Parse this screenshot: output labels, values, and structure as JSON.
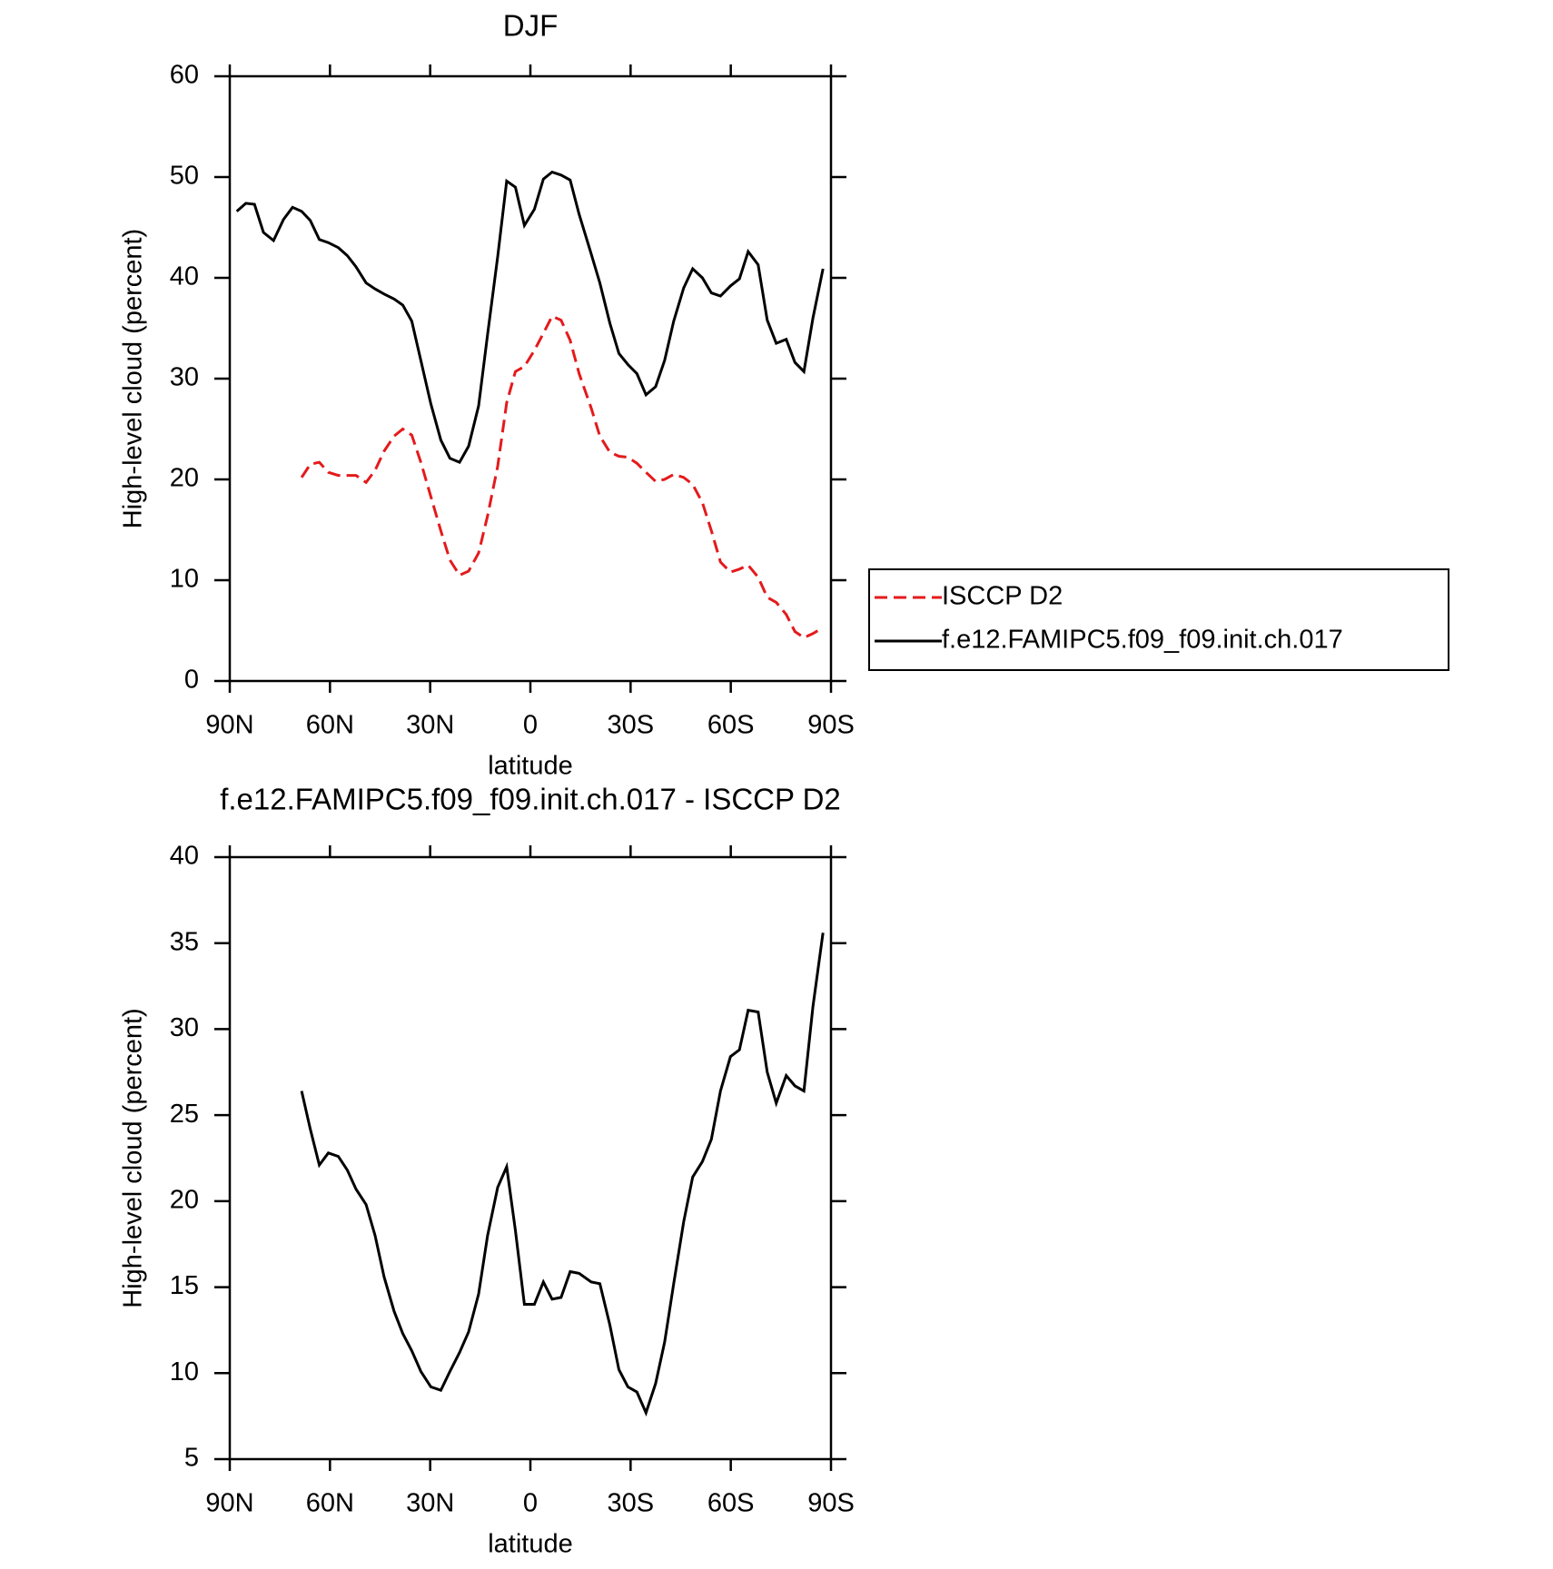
{
  "chart_data": [
    {
      "type": "line",
      "title": "DJF",
      "xlabel": "latitude",
      "ylabel": "High-level cloud (percent)",
      "x": [
        87.9,
        85.2,
        82.6,
        79.9,
        76.9,
        73.9,
        71.2,
        68.5,
        65.9,
        63.2,
        60.5,
        57.5,
        54.8,
        52.2,
        49.2,
        46.5,
        43.8,
        40.8,
        38.2,
        35.5,
        32.8,
        29.8,
        26.8,
        24.1,
        21.2,
        18.5,
        15.5,
        12.8,
        9.8,
        7.1,
        4.5,
        1.8,
        -1.2,
        -3.9,
        -6.5,
        -9.2,
        -11.9,
        -14.6,
        -18.2,
        -20.8,
        -23.8,
        -26.5,
        -29.2,
        -31.9,
        -34.6,
        -37.5,
        -40.2,
        -42.9,
        -45.9,
        -48.6,
        -51.5,
        -54.2,
        -56.9,
        -59.9,
        -62.6,
        -65.2,
        -68.2,
        -70.9,
        -73.6,
        -76.6,
        -79.2,
        -81.9,
        -84.6,
        -87.6
      ],
      "series": [
        {
          "name": "ISCCP D2",
          "color": "#e41a1c",
          "dash": true,
          "values": [
            null,
            null,
            null,
            null,
            null,
            null,
            null,
            20.2,
            21.5,
            21.7,
            20.7,
            20.4,
            20.4,
            20.4,
            19.7,
            20.9,
            22.8,
            24.3,
            25.0,
            24.4,
            21.7,
            18.3,
            14.9,
            12.0,
            10.5,
            10.9,
            12.7,
            16.4,
            21.3,
            27.6,
            30.7,
            31.2,
            32.8,
            34.5,
            36.2,
            35.8,
            33.8,
            30.5,
            27.1,
            24.3,
            22.7,
            22.3,
            22.2,
            21.6,
            20.7,
            19.8,
            20.0,
            20.5,
            20.2,
            19.5,
            17.7,
            14.9,
            11.8,
            10.8,
            11.1,
            11.5,
            10.3,
            8.3,
            7.8,
            6.6,
            4.9,
            4.3,
            4.7,
            5.3
          ]
        },
        {
          "name": "f.e12.FAMIPC5.f09_f09.init.ch.017",
          "color": "#000000",
          "dash": false,
          "values": [
            46.6,
            47.4,
            47.3,
            44.5,
            43.7,
            45.8,
            47.0,
            46.6,
            45.7,
            43.8,
            43.5,
            43.0,
            42.2,
            41.1,
            39.5,
            38.9,
            38.4,
            37.9,
            37.3,
            35.7,
            31.8,
            27.5,
            23.9,
            22.1,
            21.7,
            23.3,
            27.3,
            34.4,
            42.1,
            49.6,
            49.0,
            45.2,
            46.8,
            49.8,
            50.5,
            50.2,
            49.7,
            46.3,
            42.4,
            39.5,
            35.5,
            32.5,
            31.4,
            30.5,
            28.4,
            29.2,
            31.8,
            35.7,
            39.0,
            40.9,
            40.0,
            38.5,
            38.2,
            39.2,
            39.9,
            42.6,
            41.3,
            35.8,
            33.5,
            33.9,
            31.6,
            30.7,
            36.0,
            40.9
          ]
        }
      ],
      "xlim": [
        90,
        -90
      ],
      "xticks": [
        {
          "value": 90,
          "label": "90N"
        },
        {
          "value": 60,
          "label": "60N"
        },
        {
          "value": 30,
          "label": "30N"
        },
        0,
        {
          "value": -30,
          "label": "30S"
        },
        {
          "value": -60,
          "label": "60S"
        },
        {
          "value": -90,
          "label": "90S"
        }
      ],
      "ylim": [
        0,
        60
      ],
      "yticks": [
        0,
        10,
        20,
        30,
        40,
        50,
        60
      ],
      "legend": true
    },
    {
      "type": "line",
      "title": "f.e12.FAMIPC5.f09_f09.init.ch.017 - ISCCP D2",
      "xlabel": "latitude",
      "ylabel": "High-level cloud (percent)",
      "x": [
        68.5,
        65.9,
        63.2,
        60.5,
        57.5,
        54.8,
        52.2,
        49.2,
        46.5,
        43.8,
        40.8,
        38.2,
        35.5,
        32.8,
        29.8,
        26.8,
        24.1,
        21.2,
        18.5,
        15.5,
        12.8,
        9.8,
        7.1,
        4.5,
        1.8,
        -1.2,
        -3.9,
        -6.5,
        -9.2,
        -11.9,
        -14.6,
        -18.2,
        -20.8,
        -23.8,
        -26.5,
        -29.2,
        -31.9,
        -34.6,
        -37.5,
        -40.2,
        -42.9,
        -45.9,
        -48.6,
        -51.5,
        -54.2,
        -56.9,
        -59.9,
        -62.6,
        -65.2,
        -68.2,
        -70.9,
        -73.6,
        -76.6,
        -79.2,
        -81.9,
        -84.6,
        -87.6
      ],
      "series": [
        {
          "color": "#000000",
          "dash": false,
          "values": [
            26.4,
            24.2,
            22.1,
            22.8,
            22.6,
            21.8,
            20.7,
            19.8,
            18.0,
            15.6,
            13.6,
            12.3,
            11.3,
            10.1,
            9.2,
            9.0,
            10.1,
            11.2,
            12.4,
            14.6,
            18.0,
            20.8,
            22.0,
            18.3,
            14.0,
            14.0,
            15.3,
            14.3,
            14.4,
            15.9,
            15.8,
            15.3,
            15.2,
            12.8,
            10.2,
            9.2,
            8.9,
            7.7,
            9.4,
            11.8,
            15.2,
            18.8,
            21.4,
            22.3,
            23.6,
            26.4,
            28.4,
            28.8,
            31.1,
            31.0,
            27.5,
            25.7,
            27.3,
            26.7,
            26.4,
            31.3,
            35.6
          ]
        }
      ],
      "xlim": [
        90,
        -90
      ],
      "xticks": [
        {
          "value": 90,
          "label": "90N"
        },
        {
          "value": 60,
          "label": "60N"
        },
        {
          "value": 30,
          "label": "30N"
        },
        0,
        {
          "value": -30,
          "label": "30S"
        },
        {
          "value": -60,
          "label": "60S"
        },
        {
          "value": -90,
          "label": "90S"
        }
      ],
      "ylim": [
        5,
        40
      ],
      "yticks": [
        5,
        10,
        15,
        20,
        25,
        30,
        35,
        40
      ],
      "legend": false
    }
  ]
}
